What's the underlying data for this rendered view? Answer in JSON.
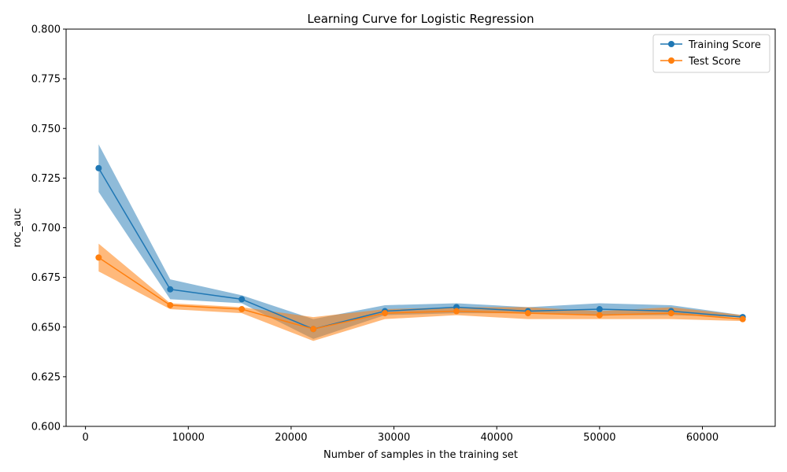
{
  "chart_data": {
    "type": "line",
    "title": "Learning Curve for Logistic Regression",
    "xlabel": "Number of samples in the training set",
    "ylabel": "roc_auc",
    "xlim": [
      -1884,
      67080
    ],
    "ylim": [
      0.6,
      0.8
    ],
    "xticks": [
      0,
      10000,
      20000,
      30000,
      40000,
      50000,
      60000
    ],
    "yticks": [
      0.6,
      0.625,
      0.65,
      0.675,
      0.7,
      0.725,
      0.75,
      0.775,
      0.8
    ],
    "ytick_labels": [
      "0.600",
      "0.625",
      "0.650",
      "0.675",
      "0.700",
      "0.725",
      "0.750",
      "0.775",
      "0.800"
    ],
    "grid": false,
    "legend_position": "top-right",
    "x": [
      1280,
      8240,
      15200,
      22160,
      29120,
      36080,
      43040,
      50000,
      56960,
      63920
    ],
    "series": [
      {
        "name": "Training Score",
        "color": "#1f77b4",
        "band_color": "#1f77b4",
        "values": [
          0.73,
          0.669,
          0.664,
          0.649,
          0.658,
          0.66,
          0.658,
          0.659,
          0.658,
          0.655
        ],
        "upper": [
          0.742,
          0.674,
          0.666,
          0.654,
          0.661,
          0.662,
          0.66,
          0.662,
          0.661,
          0.656
        ],
        "lower": [
          0.718,
          0.664,
          0.662,
          0.644,
          0.656,
          0.657,
          0.657,
          0.656,
          0.656,
          0.655
        ]
      },
      {
        "name": "Test Score",
        "color": "#ff7f0e",
        "band_color": "#ff7f0e",
        "values": [
          0.685,
          0.661,
          0.659,
          0.649,
          0.657,
          0.658,
          0.657,
          0.656,
          0.657,
          0.654
        ],
        "upper": [
          0.692,
          0.662,
          0.66,
          0.655,
          0.659,
          0.66,
          0.66,
          0.658,
          0.66,
          0.656
        ],
        "lower": [
          0.678,
          0.659,
          0.657,
          0.643,
          0.654,
          0.656,
          0.654,
          0.654,
          0.654,
          0.653
        ]
      }
    ]
  }
}
